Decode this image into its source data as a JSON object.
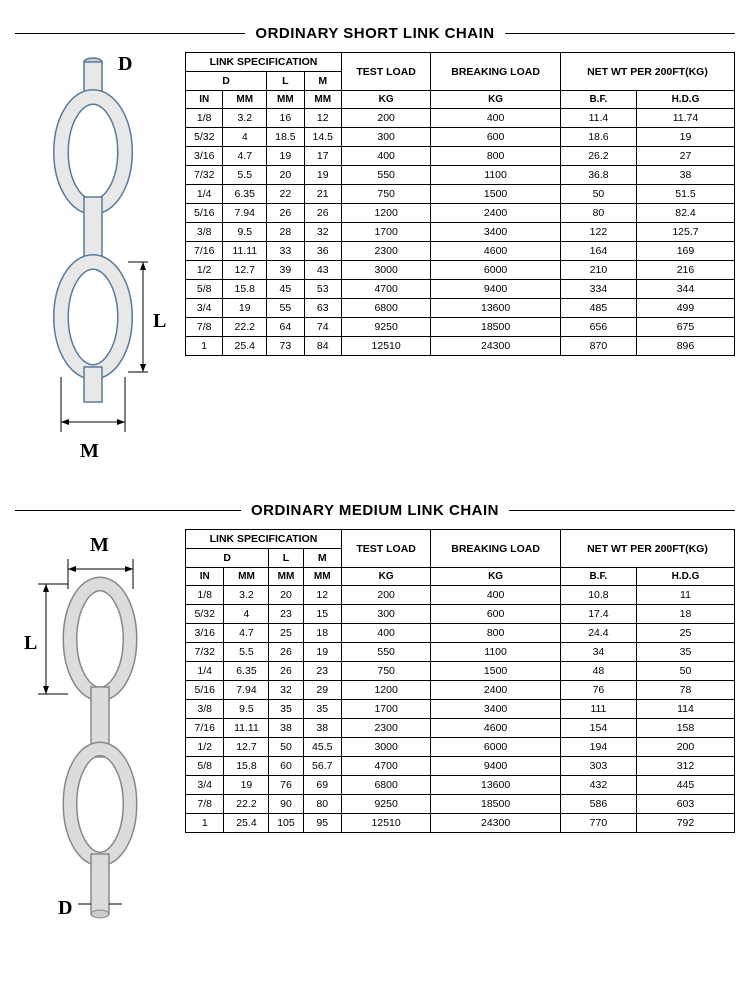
{
  "section1": {
    "title": "ORDINARY SHORT LINK CHAIN",
    "diagram_labels": {
      "D": "D",
      "L": "L",
      "M": "M"
    },
    "headers": {
      "link_spec": "LINK SPECIFICATION",
      "test_load": "TEST LOAD",
      "breaking_load": "BREAKING LOAD",
      "net_wt": "NET WT PER 200FT(KG)",
      "D": "D",
      "L": "L",
      "M": "M",
      "IN": "IN",
      "MM": "MM",
      "KG": "KG",
      "BF": "B.F.",
      "HDG": "H.D.G"
    },
    "rows": [
      [
        "1/8",
        "3.2",
        "16",
        "12",
        "200",
        "400",
        "11.4",
        "11.74"
      ],
      [
        "5/32",
        "4",
        "18.5",
        "14.5",
        "300",
        "600",
        "18.6",
        "19"
      ],
      [
        "3/16",
        "4.7",
        "19",
        "17",
        "400",
        "800",
        "26.2",
        "27"
      ],
      [
        "7/32",
        "5.5",
        "20",
        "19",
        "550",
        "1100",
        "36.8",
        "38"
      ],
      [
        "1/4",
        "6.35",
        "22",
        "21",
        "750",
        "1500",
        "50",
        "51.5"
      ],
      [
        "5/16",
        "7.94",
        "26",
        "26",
        "1200",
        "2400",
        "80",
        "82.4"
      ],
      [
        "3/8",
        "9.5",
        "28",
        "32",
        "1700",
        "3400",
        "122",
        "125.7"
      ],
      [
        "7/16",
        "11.11",
        "33",
        "36",
        "2300",
        "4600",
        "164",
        "169"
      ],
      [
        "1/2",
        "12.7",
        "39",
        "43",
        "3000",
        "6000",
        "210",
        "216"
      ],
      [
        "5/8",
        "15.8",
        "45",
        "53",
        "4700",
        "9400",
        "334",
        "344"
      ],
      [
        "3/4",
        "19",
        "55",
        "63",
        "6800",
        "13600",
        "485",
        "499"
      ],
      [
        "7/8",
        "22.2",
        "64",
        "74",
        "9250",
        "18500",
        "656",
        "675"
      ],
      [
        "1",
        "25.4",
        "73",
        "84",
        "12510",
        "24300",
        "870",
        "896"
      ]
    ]
  },
  "section2": {
    "title": "ORDINARY MEDIUM LINK CHAIN",
    "diagram_labels": {
      "D": "D",
      "L": "L",
      "M": "M"
    },
    "headers": {
      "link_spec": "LINK SPECIFICATION",
      "test_load": "TEST LOAD",
      "breaking_load": "BREAKING LOAD",
      "net_wt": "NET WT PER 200FT(KG)",
      "D": "D",
      "L": "L",
      "M": "M",
      "IN": "IN",
      "MM": "MM",
      "KG": "KG",
      "BF": "B.F.",
      "HDG": "H.D.G"
    },
    "rows": [
      [
        "1/8",
        "3.2",
        "20",
        "12",
        "200",
        "400",
        "10.8",
        "11"
      ],
      [
        "5/32",
        "4",
        "23",
        "15",
        "300",
        "600",
        "17.4",
        "18"
      ],
      [
        "3/16",
        "4.7",
        "25",
        "18",
        "400",
        "800",
        "24.4",
        "25"
      ],
      [
        "7/32",
        "5.5",
        "26",
        "19",
        "550",
        "1100",
        "34",
        "35"
      ],
      [
        "1/4",
        "6.35",
        "26",
        "23",
        "750",
        "1500",
        "48",
        "50"
      ],
      [
        "5/16",
        "7.94",
        "32",
        "29",
        "1200",
        "2400",
        "76",
        "78"
      ],
      [
        "3/8",
        "9.5",
        "35",
        "35",
        "1700",
        "3400",
        "111",
        "114"
      ],
      [
        "7/16",
        "11.11",
        "38",
        "38",
        "2300",
        "4600",
        "154",
        "158"
      ],
      [
        "1/2",
        "12.7",
        "50",
        "45.5",
        "3000",
        "6000",
        "194",
        "200"
      ],
      [
        "5/8",
        "15.8",
        "60",
        "56.7",
        "4700",
        "9400",
        "303",
        "312"
      ],
      [
        "3/4",
        "19",
        "76",
        "69",
        "6800",
        "13600",
        "432",
        "445"
      ],
      [
        "7/8",
        "22.2",
        "90",
        "80",
        "9250",
        "18500",
        "586",
        "603"
      ],
      [
        "1",
        "25.4",
        "105",
        "95",
        "12510",
        "24300",
        "770",
        "792"
      ]
    ]
  },
  "colors": {
    "chain_stroke1": "#5a7a9a",
    "chain_fill1": "#e8e8e8",
    "chain_stroke2": "#888888",
    "chain_fill2": "#dcdcdc"
  }
}
